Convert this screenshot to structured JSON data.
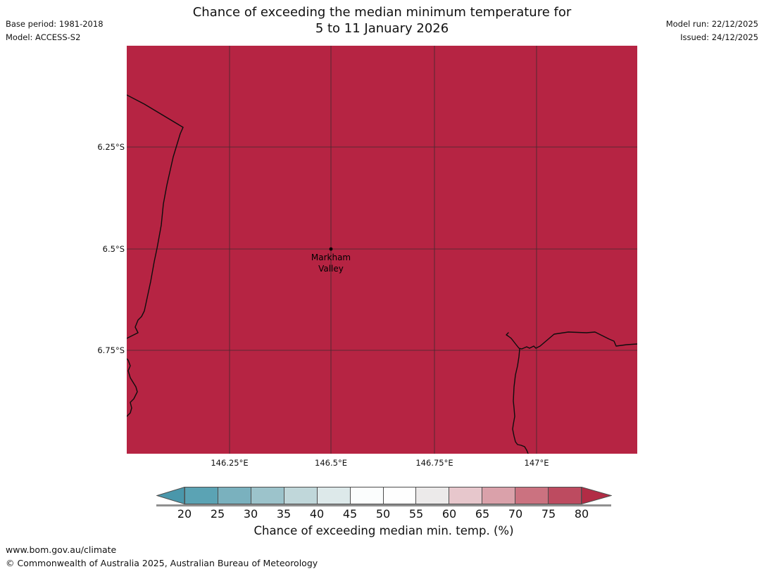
{
  "header": {
    "title_line1": "Chance of exceeding the median minimum temperature for",
    "title_line2": "5 to 11 January 2026",
    "base_period": "Base period: 1981-2018",
    "model": "Model: ACCESS-S2",
    "model_run": "Model run: 22/12/2025",
    "issued": "Issued: 24/12/2025"
  },
  "map": {
    "fill_color": "#b62443",
    "coastline_color": "#0d0d0d",
    "gridline_color": "#2b2b2b",
    "lat_ticks": [
      "6.25°S",
      "6.5°S",
      "6.75°S"
    ],
    "lon_ticks": [
      "146.25°E",
      "146.5°E",
      "146.75°E",
      "147°E"
    ],
    "marker": {
      "name": "Markham Valley",
      "label_line1": "Markham",
      "label_line2": "Valley"
    }
  },
  "colorbar": {
    "label": "Chance of exceeding median min. temp. (%)",
    "ticks": [
      "20",
      "25",
      "30",
      "35",
      "40",
      "45",
      "50",
      "55",
      "60",
      "65",
      "70",
      "75",
      "80"
    ],
    "segment_colors": [
      "#5ba3b4",
      "#7ab1be",
      "#9cc3cb",
      "#c0d7da",
      "#dde9ea",
      "#fbfdfd",
      "#fefefe",
      "#eceaea",
      "#e7c7cc",
      "#daa1aa",
      "#cb7280",
      "#bd4b60"
    ],
    "left_arrow_color": "#4a97ab",
    "right_arrow_color": "#b22c45",
    "outline_color": "#4d4d4d"
  },
  "footer": {
    "url": "www.bom.gov.au/climate",
    "copyright": "© Commonwealth of Australia 2025, Australian Bureau of Meteorology"
  }
}
